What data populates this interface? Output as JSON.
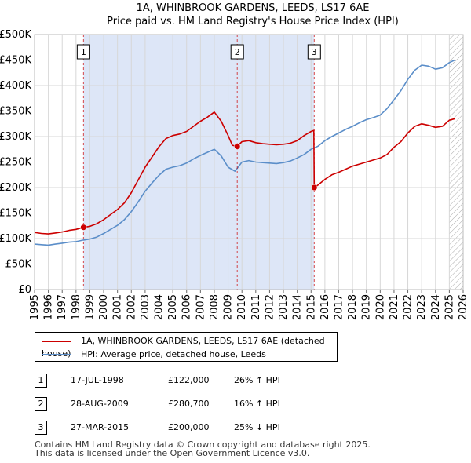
{
  "chart_data": {
    "type": "line",
    "title": "1A, WHINBROOK GARDENS, LEEDS, LS17 6AE",
    "subtitle": "Price paid vs. HM Land Registry's House Price Index (HPI)",
    "xlabel": "",
    "ylabel": "",
    "xlim": [
      1995,
      2026
    ],
    "ylim": [
      0,
      500000
    ],
    "grid": true,
    "y_ticks": [
      {
        "value": 0,
        "label": "£0"
      },
      {
        "value": 50000,
        "label": "£50K"
      },
      {
        "value": 100000,
        "label": "£100K"
      },
      {
        "value": 150000,
        "label": "£150K"
      },
      {
        "value": 200000,
        "label": "£200K"
      },
      {
        "value": 250000,
        "label": "£250K"
      },
      {
        "value": 300000,
        "label": "£300K"
      },
      {
        "value": 350000,
        "label": "£350K"
      },
      {
        "value": 400000,
        "label": "£400K"
      },
      {
        "value": 450000,
        "label": "£450K"
      },
      {
        "value": 500000,
        "label": "£500K"
      }
    ],
    "x_ticks": [
      "1995",
      "1996",
      "1997",
      "1998",
      "1999",
      "2000",
      "2001",
      "2002",
      "2003",
      "2004",
      "2005",
      "2006",
      "2007",
      "2008",
      "2009",
      "2010",
      "2011",
      "2012",
      "2013",
      "2014",
      "2015",
      "2016",
      "2017",
      "2018",
      "2019",
      "2020",
      "2021",
      "2022",
      "2023",
      "2024",
      "2025",
      "2026"
    ],
    "owned_period": {
      "start": 1998.54,
      "end": 2015.23
    },
    "future_hatch_start": 2025.0,
    "series": [
      {
        "name": "1A, WHINBROOK GARDENS, LEEDS, LS17 6AE (detached house)",
        "color": "#cc0000",
        "x": [
          1995.0,
          1995.5,
          1996.0,
          1996.5,
          1997.0,
          1997.5,
          1998.0,
          1998.54,
          1999.0,
          1999.5,
          2000.0,
          2000.5,
          2001.0,
          2001.5,
          2002.0,
          2002.5,
          2003.0,
          2003.5,
          2004.0,
          2004.5,
          2005.0,
          2005.5,
          2006.0,
          2006.5,
          2007.0,
          2007.5,
          2008.0,
          2008.5,
          2009.0,
          2009.3,
          2009.66,
          2010.0,
          2010.5,
          2011.0,
          2011.5,
          2012.0,
          2012.5,
          2013.0,
          2013.5,
          2014.0,
          2014.5,
          2015.0,
          2015.2,
          2015.23,
          2015.5,
          2016.0,
          2016.5,
          2017.0,
          2017.5,
          2018.0,
          2018.5,
          2019.0,
          2019.5,
          2020.0,
          2020.5,
          2021.0,
          2021.5,
          2022.0,
          2022.5,
          2023.0,
          2023.5,
          2024.0,
          2024.5,
          2025.0,
          2025.4
        ],
        "values": [
          112000,
          110000,
          109000,
          111000,
          113000,
          116000,
          118000,
          122000,
          124000,
          129000,
          137000,
          147000,
          157000,
          170000,
          190000,
          215000,
          240000,
          260000,
          280000,
          296000,
          302000,
          305000,
          310000,
          320000,
          330000,
          338000,
          348000,
          330000,
          302000,
          283000,
          280700,
          290000,
          292000,
          288000,
          286000,
          285000,
          284000,
          285000,
          287000,
          292000,
          302000,
          310000,
          312000,
          200000,
          205000,
          216000,
          225000,
          230000,
          236000,
          242000,
          246000,
          250000,
          254000,
          258000,
          265000,
          279000,
          290000,
          307000,
          320000,
          325000,
          322000,
          318000,
          320000,
          332000,
          335000
        ]
      },
      {
        "name": "HPI: Average price, detached house, Leeds",
        "color": "#5b8ec9",
        "x": [
          1995.0,
          1995.5,
          1996.0,
          1996.5,
          1997.0,
          1997.5,
          1998.0,
          1998.54,
          1999.0,
          1999.5,
          2000.0,
          2000.5,
          2001.0,
          2001.5,
          2002.0,
          2002.5,
          2003.0,
          2003.5,
          2004.0,
          2004.5,
          2005.0,
          2005.5,
          2006.0,
          2006.5,
          2007.0,
          2007.5,
          2008.0,
          2008.5,
          2009.0,
          2009.5,
          2010.0,
          2010.5,
          2011.0,
          2011.5,
          2012.0,
          2012.5,
          2013.0,
          2013.5,
          2014.0,
          2014.5,
          2015.0,
          2015.5,
          2016.0,
          2016.5,
          2017.0,
          2017.5,
          2018.0,
          2018.5,
          2019.0,
          2019.5,
          2020.0,
          2020.5,
          2021.0,
          2021.5,
          2022.0,
          2022.5,
          2023.0,
          2023.5,
          2024.0,
          2024.5,
          2025.0,
          2025.4
        ],
        "values": [
          89000,
          88000,
          87000,
          89000,
          91000,
          93000,
          94000,
          97000,
          99000,
          103000,
          110000,
          118000,
          126000,
          137000,
          153000,
          172000,
          193000,
          209000,
          224000,
          236000,
          240000,
          243000,
          248000,
          256000,
          263000,
          269000,
          275000,
          262000,
          240000,
          232000,
          250000,
          253000,
          250000,
          249000,
          248000,
          247000,
          249000,
          252000,
          258000,
          265000,
          275000,
          281000,
          292000,
          300000,
          307000,
          314000,
          320000,
          327000,
          333000,
          337000,
          342000,
          355000,
          372000,
          390000,
          412000,
          430000,
          440000,
          438000,
          432000,
          435000,
          445000,
          450000
        ]
      }
    ],
    "markers": [
      {
        "id": "1",
        "x": 1998.54,
        "y": 122000
      },
      {
        "id": "2",
        "x": 2009.66,
        "y": 280700
      },
      {
        "id": "3",
        "x": 2015.23,
        "y": 200000
      }
    ]
  },
  "legend": {
    "red_label": "1A, WHINBROOK GARDENS, LEEDS, LS17 6AE (detached house)",
    "blue_label": "HPI: Average price, detached house, Leeds"
  },
  "transactions": [
    {
      "id": "1",
      "date": "17-JUL-1998",
      "price": "£122,000",
      "hpi": "26% ↑ HPI"
    },
    {
      "id": "2",
      "date": "28-AUG-2009",
      "price": "£280,700",
      "hpi": "16% ↑ HPI"
    },
    {
      "id": "3",
      "date": "27-MAR-2015",
      "price": "£200,000",
      "hpi": "25% ↓ HPI"
    }
  ],
  "footer": {
    "line1": "Contains HM Land Registry data © Crown copyright and database right 2025.",
    "line2": "This data is licensed under the Open Government Licence v3.0."
  },
  "colors": {
    "red": "#cc0000",
    "blue": "#5b8ec9",
    "owned_bg": "#dde6f7",
    "grid": "#d7d7d7"
  }
}
